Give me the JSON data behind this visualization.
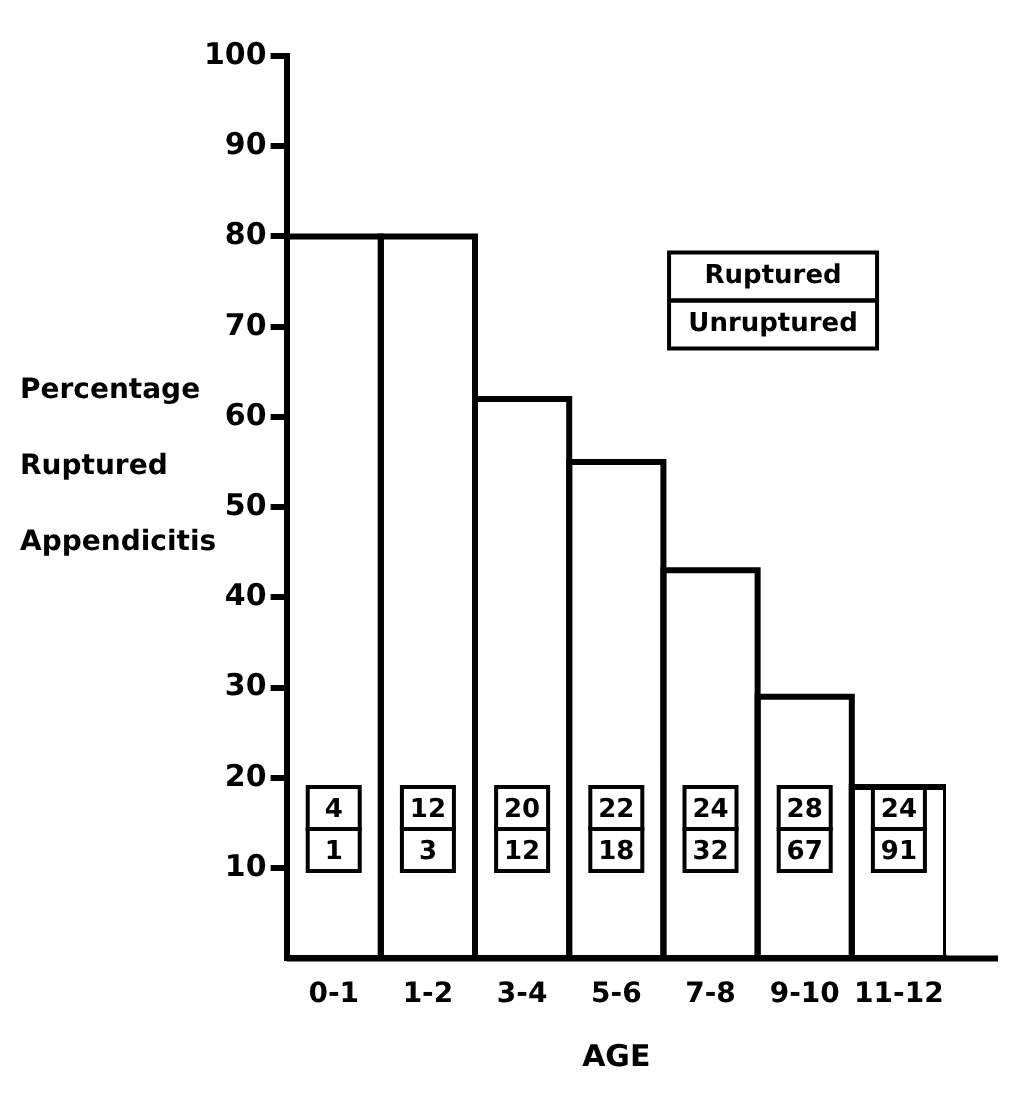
{
  "chart_data": {
    "type": "bar",
    "xlabel": "AGE",
    "ylabel": "Percentage Ruptured Appendicitis",
    "categories": [
      "0-1",
      "1-2",
      "3-4",
      "5-6",
      "7-8",
      "9-10",
      "11-12"
    ],
    "values": [
      80,
      80,
      62,
      55,
      43,
      29,
      19
    ],
    "color": "#000000",
    "ylim": [
      0,
      100
    ],
    "yticks": [
      10,
      20,
      30,
      40,
      50,
      60,
      70,
      80,
      90,
      100
    ],
    "grid": false,
    "legend": false,
    "annotations": [
      "Ruptured",
      "Unruptured",
      "4",
      "1",
      "12",
      "3",
      "20",
      "12",
      "22",
      "18",
      "24",
      "32",
      "28",
      "67",
      "24",
      "91"
    ]
  }
}
